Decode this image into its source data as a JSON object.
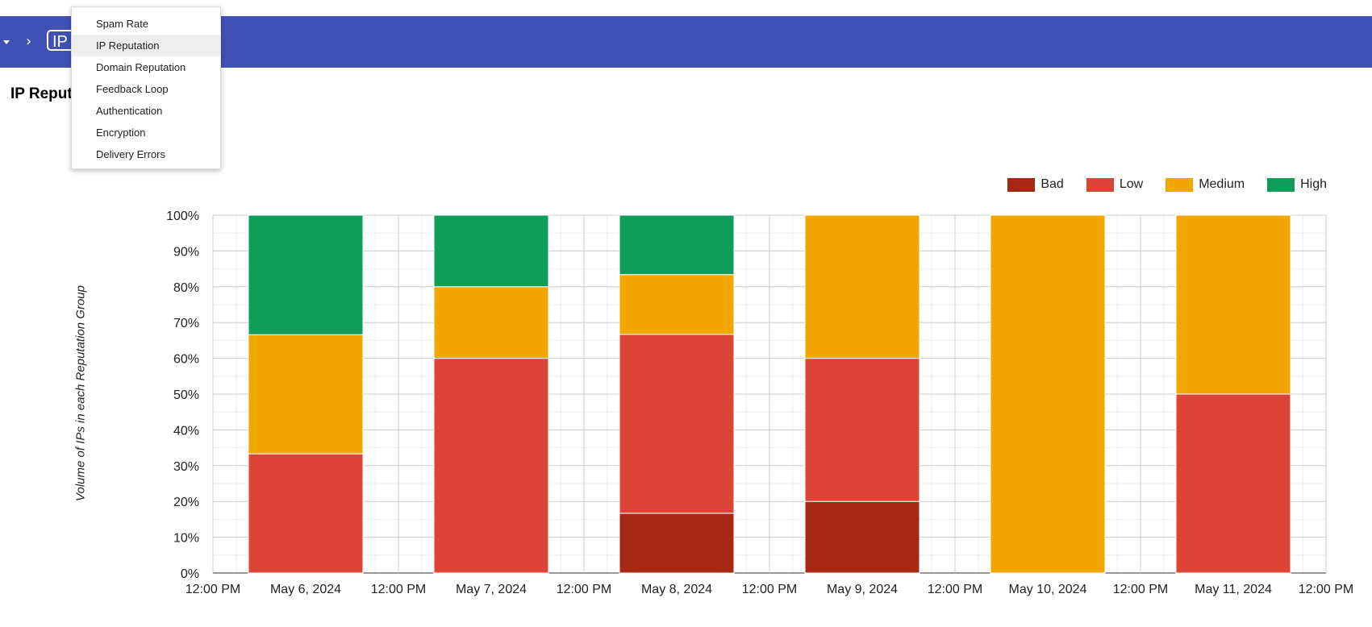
{
  "header": {
    "crumb_label": "IP"
  },
  "page_title": "IP Reputation",
  "menu": {
    "items": [
      {
        "label": "Spam Rate",
        "active": false
      },
      {
        "label": "IP Reputation",
        "active": true
      },
      {
        "label": "Domain Reputation",
        "active": false
      },
      {
        "label": "Feedback Loop",
        "active": false
      },
      {
        "label": "Authentication",
        "active": false
      },
      {
        "label": "Encryption",
        "active": false
      },
      {
        "label": "Delivery Errors",
        "active": false
      }
    ]
  },
  "legend": [
    {
      "name": "Bad",
      "color": "#a52714"
    },
    {
      "name": "Low",
      "color": "#db4437"
    },
    {
      "name": "Medium",
      "color": "#f2a600"
    },
    {
      "name": "High",
      "color": "#109d59"
    }
  ],
  "chart_data": {
    "type": "bar",
    "stacked": true,
    "categories": [
      "May 6, 2024",
      "May 7, 2024",
      "May 8, 2024",
      "May 9, 2024",
      "May 10, 2024",
      "May 11, 2024"
    ],
    "x_tick_labels": [
      "12:00 PM",
      "May 6, 2024",
      "12:00 PM",
      "May 7, 2024",
      "12:00 PM",
      "May 8, 2024",
      "12:00 PM",
      "May 9, 2024",
      "12:00 PM",
      "May 10, 2024",
      "12:00 PM",
      "May 11, 2024",
      "12:00 PM"
    ],
    "y_tick_labels": [
      "0%",
      "10%",
      "20%",
      "30%",
      "40%",
      "50%",
      "60%",
      "70%",
      "80%",
      "90%",
      "100%"
    ],
    "series": [
      {
        "name": "Bad",
        "values": [
          0,
          0,
          16.7,
          20,
          0,
          0
        ]
      },
      {
        "name": "Low",
        "values": [
          33.3,
          60,
          50,
          40,
          0,
          50
        ]
      },
      {
        "name": "Medium",
        "values": [
          33.3,
          20,
          16.7,
          40,
          100,
          50
        ]
      },
      {
        "name": "High",
        "values": [
          33.4,
          20,
          16.6,
          0,
          0,
          0
        ]
      }
    ],
    "ylabel": "Volume of IPs in each Reputation Group",
    "ylim": [
      0,
      100
    ],
    "grid": true,
    "legend_position": "top-right"
  }
}
